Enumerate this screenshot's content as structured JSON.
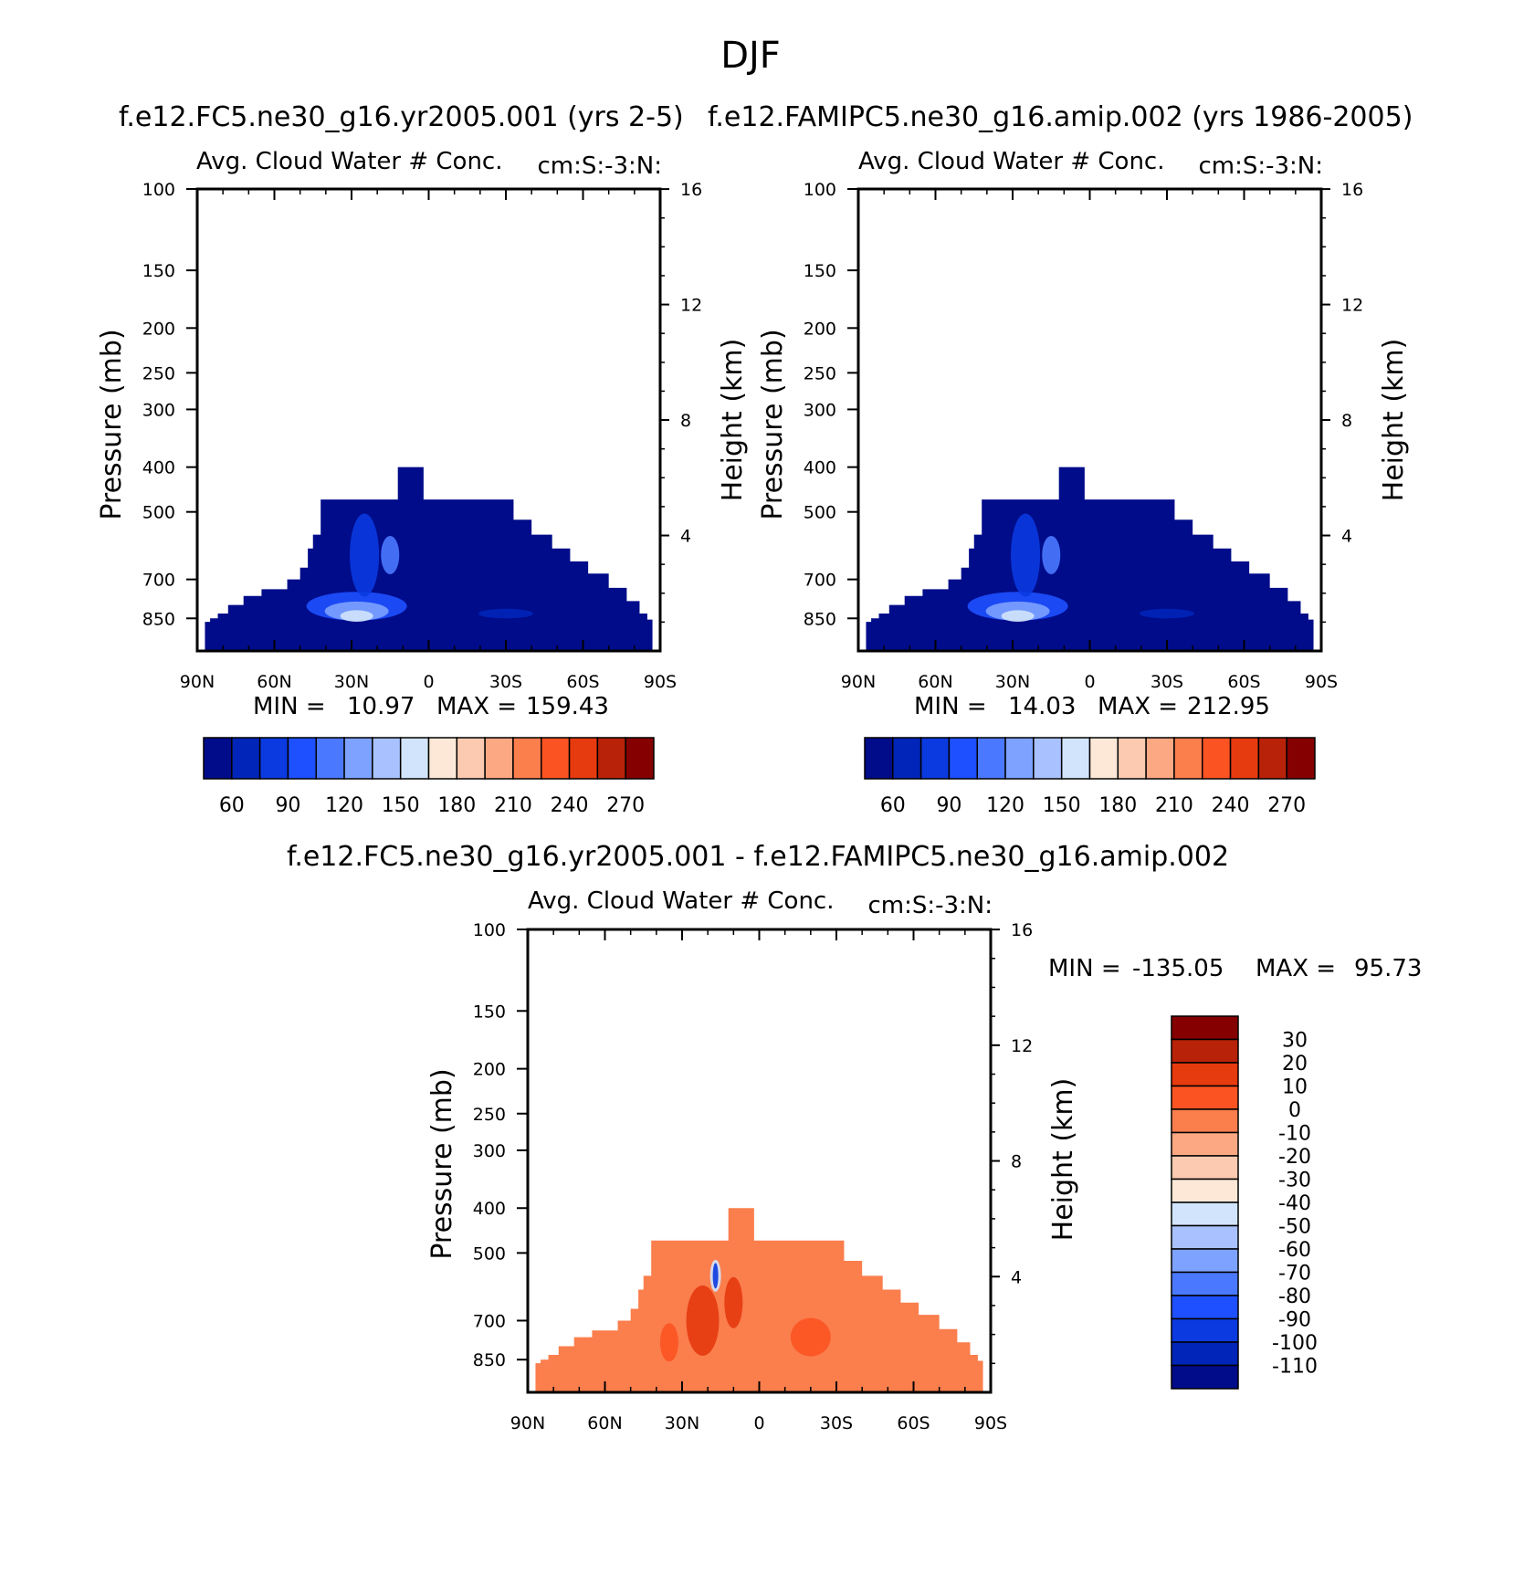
{
  "page": {
    "title": "DJF"
  },
  "colors": {
    "abs_scale": [
      "#000c8a",
      "#0025b8",
      "#0a3ae0",
      "#1e50ff",
      "#4a79ff",
      "#7ea2ff",
      "#a9c2ff",
      "#d2e4fb",
      "#fde8d7",
      "#fccab0",
      "#fca883",
      "#fb7e4d",
      "#fb5422",
      "#e63a0f",
      "#b82208",
      "#850000"
    ],
    "diff_scale": [
      "#000c8a",
      "#0025b8",
      "#0a3ae0",
      "#1e50ff",
      "#4a79ff",
      "#7ea2ff",
      "#a9c2ff",
      "#d2e4fb",
      "#fde8d7",
      "#fccab0",
      "#fca883",
      "#fb7e4d",
      "#fb5422",
      "#e63a0f",
      "#b82208",
      "#850000"
    ],
    "fill_base_abs": "#000c8a",
    "fill_base_diff": "#fb7e4d"
  },
  "chart_data": [
    {
      "id": "p1",
      "type": "heatmap",
      "case_title": "f.e12.FC5.ne30_g16.yr2005.001 (yrs 2-5)",
      "field_title": "Avg. Cloud Water # Conc.",
      "units_title": "cm:S:-3:N:",
      "ylabel": "Pressure (mb)",
      "ylabel_right": "Height (km)",
      "x_ticks": [
        "90N",
        "60N",
        "30N",
        "0",
        "30S",
        "60S",
        "90S"
      ],
      "y_ticks": [
        "100",
        "150",
        "200",
        "250",
        "300",
        "400",
        "500",
        "700",
        "850"
      ],
      "y_ticks_right": [
        "16",
        "12",
        "8",
        "4"
      ],
      "ylim": [
        1000,
        100
      ],
      "min_label": "MIN =",
      "min_value": "10.97",
      "max_label": "MAX =",
      "max_value": "159.43",
      "colorbar_labels": [
        "60",
        "90",
        "120",
        "150",
        "180",
        "210",
        "240",
        "270"
      ]
    },
    {
      "id": "p2",
      "type": "heatmap",
      "case_title": "f.e12.FAMIPC5.ne30_g16.amip.002 (yrs 1986-2005)",
      "field_title": "Avg. Cloud Water # Conc.",
      "units_title": "cm:S:-3:N:",
      "ylabel": "Pressure (mb)",
      "ylabel_right": "Height (km)",
      "x_ticks": [
        "90N",
        "60N",
        "30N",
        "0",
        "30S",
        "60S",
        "90S"
      ],
      "y_ticks": [
        "100",
        "150",
        "200",
        "250",
        "300",
        "400",
        "500",
        "700",
        "850"
      ],
      "y_ticks_right": [
        "16",
        "12",
        "8",
        "4"
      ],
      "ylim": [
        1000,
        100
      ],
      "min_label": "MIN =",
      "min_value": "14.03",
      "max_label": "MAX =",
      "max_value": "212.95",
      "colorbar_labels": [
        "60",
        "90",
        "120",
        "150",
        "180",
        "210",
        "240",
        "270"
      ]
    },
    {
      "id": "p3",
      "type": "heatmap",
      "case_title": "f.e12.FC5.ne30_g16.yr2005.001 - f.e12.FAMIPC5.ne30_g16.amip.002",
      "field_title": "Avg. Cloud Water # Conc.",
      "units_title": "cm:S:-3:N:",
      "ylabel": "Pressure (mb)",
      "ylabel_right": "Height (km)",
      "x_ticks": [
        "90N",
        "60N",
        "30N",
        "0",
        "30S",
        "60S",
        "90S"
      ],
      "y_ticks": [
        "100",
        "150",
        "200",
        "250",
        "300",
        "400",
        "500",
        "700",
        "850"
      ],
      "y_ticks_right": [
        "16",
        "12",
        "8",
        "4"
      ],
      "ylim": [
        1000,
        100
      ],
      "min_label": "MIN =",
      "min_value": "-135.05",
      "max_label": "MAX =",
      "max_value": "95.73",
      "colorbar_labels": [
        "30",
        "20",
        "10",
        "0",
        "-10",
        "-20",
        "-30",
        "-40",
        "-50",
        "-60",
        "-70",
        "-80",
        "-90",
        "-100",
        "-110"
      ]
    }
  ]
}
